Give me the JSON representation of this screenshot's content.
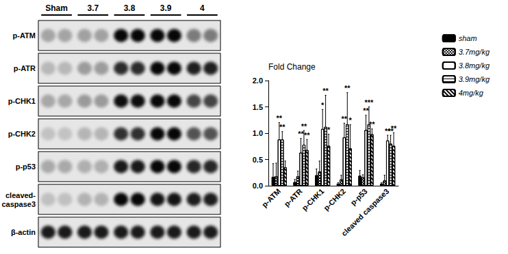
{
  "blot": {
    "lanes": [
      "Sham",
      "3.7",
      "3.8",
      "3.9",
      "4"
    ],
    "rows": [
      "p-ATM",
      "p-ATR",
      "p-CHK1",
      "p-CHK2",
      "p-p53",
      "cleaved-caspase3",
      "β-actin"
    ]
  },
  "chart_data": {
    "type": "bar",
    "categories": [
      "p-ATM",
      "p-ATR",
      "p-CHK1",
      "p-CHK2",
      "p-p53",
      "cleaved caspase3"
    ],
    "y_label": "Fold Change",
    "ylim": [
      0,
      2
    ],
    "yticks": [
      {
        "value": 0,
        "label": "0.0"
      },
      {
        "value": 0.5,
        "label": "0.5"
      },
      {
        "value": 1,
        "label": "1.0"
      },
      {
        "value": 1.5,
        "label": "1.5"
      },
      {
        "value": 2,
        "label": "2.0"
      }
    ],
    "grid": false,
    "legend": "right",
    "series": [
      {
        "name": "sham",
        "color": "#000000",
        "values": [
          0.17,
          0.07,
          0.2,
          0.04,
          0.19,
          0.04
        ],
        "errors": [
          0.25,
          0.05,
          0.12,
          0.02,
          0.1,
          0.02
        ],
        "stars": [
          null,
          null,
          null,
          null,
          null,
          null
        ]
      },
      {
        "name": "3.7mg/kg",
        "color": "#ffffff",
        "values": [
          0.18,
          0.18,
          0.27,
          0.12,
          0.16,
          0.1
        ],
        "errors": [
          0.25,
          0.1,
          0.2,
          0.08,
          0.05,
          0.1
        ],
        "stars": [
          null,
          null,
          null,
          null,
          null,
          null
        ]
      },
      {
        "name": "3.8mg/kg",
        "color": "#ffffff",
        "values": [
          0.88,
          0.63,
          1.08,
          0.92,
          1.06,
          0.86
        ],
        "errors": [
          0.32,
          0.27,
          0.37,
          0.27,
          0.28,
          0.1
        ],
        "stars": [
          "**",
          "**",
          "*",
          "**",
          "**",
          "**"
        ]
      },
      {
        "name": "3.9mg/kg",
        "color": "#ffffff",
        "values": [
          0.88,
          0.78,
          1.12,
          1.17,
          1.17,
          0.8
        ],
        "errors": [
          0.15,
          0.27,
          0.6,
          0.6,
          0.33,
          0.16
        ],
        "stars": [
          "**",
          "**",
          "**",
          "**",
          "***",
          "**"
        ]
      },
      {
        "name": "4mg/kg",
        "color": "#ffffff",
        "values": [
          0.35,
          0.68,
          0.76,
          0.71,
          0.98,
          0.76
        ],
        "errors": [
          0.12,
          0.2,
          0.22,
          0.45,
          0.1,
          0.25
        ],
        "stars": [
          null,
          "**",
          "*",
          "*",
          "**",
          "**"
        ]
      }
    ]
  }
}
